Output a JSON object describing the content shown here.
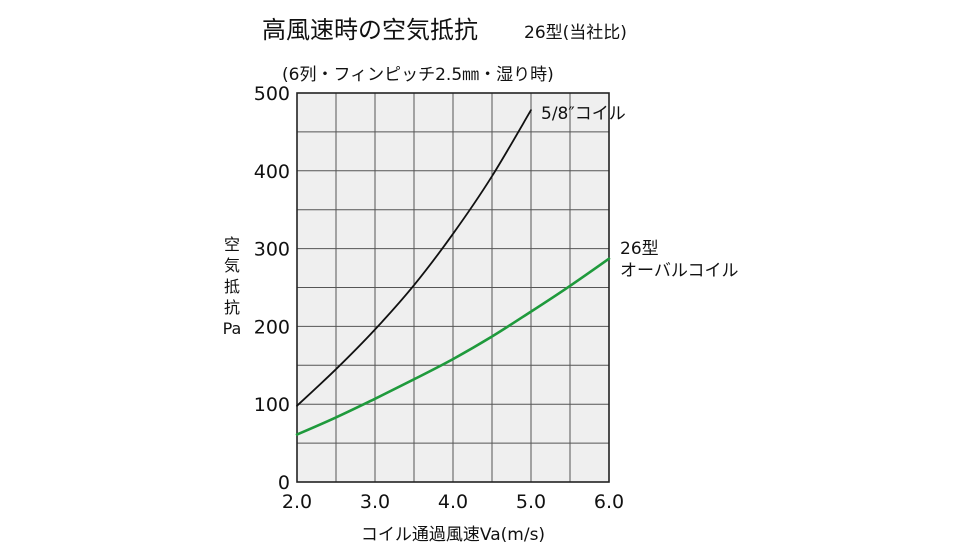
{
  "chart_data": {
    "type": "line",
    "title": "高風速時の空気抵抗",
    "subtitle": "26型(当社比)",
    "conditions": "(6列・フィンピッチ2.5㎜・湿り時)",
    "xlabel": "コイル通過風速Va(m/s)",
    "ylabel_chars": [
      "空",
      "気",
      "抵",
      "抗",
      "Pa"
    ],
    "xlim": [
      2.0,
      6.0
    ],
    "ylim": [
      0,
      500
    ],
    "xticks": [
      "2.0",
      "3.0",
      "4.0",
      "5.0",
      "6.0"
    ],
    "yticks": [
      "0",
      "100",
      "200",
      "300",
      "400",
      "500"
    ],
    "x_grid_step": 0.5,
    "y_grid_step": 50,
    "grid": true,
    "plot_background": "#efefef",
    "series": [
      {
        "name_lines": [
          "5/8″コイル"
        ],
        "color": "#111111",
        "x": [
          2.0,
          2.5,
          3.0,
          3.5,
          4.0,
          4.5,
          5.0
        ],
        "y": [
          98,
          145,
          196,
          253,
          319,
          393,
          478
        ]
      },
      {
        "name_lines": [
          "26型",
          "オーバルコイル"
        ],
        "color": "#1f9a3c",
        "x": [
          2.0,
          2.5,
          3.0,
          3.5,
          4.0,
          4.5,
          5.0,
          5.5,
          6.0
        ],
        "y": [
          61,
          83,
          107,
          132,
          158,
          187,
          219,
          252,
          287
        ]
      }
    ]
  }
}
